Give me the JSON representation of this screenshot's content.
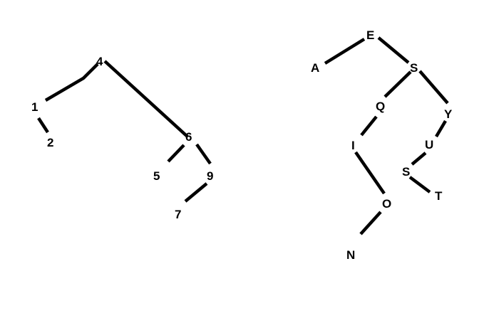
{
  "trees": [
    {
      "nodes": [
        {
          "id": "n4",
          "label": "4"
        },
        {
          "id": "n1",
          "label": "1"
        },
        {
          "id": "n2",
          "label": "2"
        },
        {
          "id": "n6",
          "label": "6"
        },
        {
          "id": "n5",
          "label": "5"
        },
        {
          "id": "n9",
          "label": "9"
        },
        {
          "id": "n7",
          "label": "7"
        }
      ],
      "edges": [
        [
          "n4",
          "n1"
        ],
        [
          "n1",
          "n2"
        ],
        [
          "n4",
          "n6"
        ],
        [
          "n6",
          "n5"
        ],
        [
          "n6",
          "n9"
        ],
        [
          "n9",
          "n7"
        ]
      ]
    },
    {
      "nodes": [
        {
          "id": "E",
          "label": "E"
        },
        {
          "id": "A",
          "label": "A"
        },
        {
          "id": "S1",
          "label": "S"
        },
        {
          "id": "Q",
          "label": "Q"
        },
        {
          "id": "I",
          "label": "I"
        },
        {
          "id": "O",
          "label": "O"
        },
        {
          "id": "N",
          "label": "N"
        },
        {
          "id": "Y",
          "label": "Y"
        },
        {
          "id": "U",
          "label": "U"
        },
        {
          "id": "S2",
          "label": "S"
        },
        {
          "id": "T",
          "label": "T"
        }
      ],
      "edges": [
        [
          "E",
          "A"
        ],
        [
          "E",
          "S1"
        ],
        [
          "S1",
          "Q"
        ],
        [
          "Q",
          "I"
        ],
        [
          "I",
          "O"
        ],
        [
          "O",
          "N"
        ],
        [
          "S1",
          "Y"
        ],
        [
          "Y",
          "U"
        ],
        [
          "U",
          "S2"
        ],
        [
          "S2",
          "T"
        ]
      ]
    }
  ]
}
